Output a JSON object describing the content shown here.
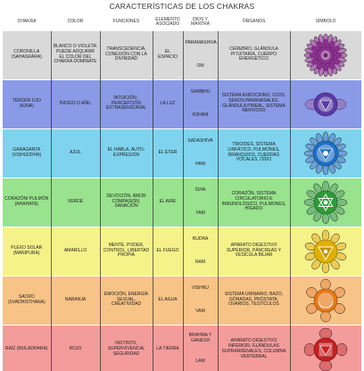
{
  "title": "CARACTERÍSTICAS DE LOS CHAKRAS",
  "headers": [
    "CHAKRA",
    "COLOR",
    "FUNCIONES",
    "ELEMENTO ASOCIADO",
    "DIOS Y MANTRA",
    "ÓRGANOS",
    "SÍMBOLO"
  ],
  "rows": [
    {
      "chakra": "CORONILLA (SAHASRARA)",
      "color": "BLANCO O VIOLETA: PUEDE ADQUIRIR EL COLOR DEL CHAKRA DOMINATE",
      "funciones": "TRANSCEDENCIA, CONEXIÓN CON LA DIVINIDAD",
      "elemento": "EL ESPACIO",
      "dios": "PARAMASHIVA",
      "mantra": "OM",
      "organos": "CEREBRO, GLÁNDULA PITUITARIA, CUERPO ENERGÉTICO",
      "symbol": "crown-chakra-icon",
      "bg": "#d9d9d9",
      "symbol_color": "#8a2f8f"
    },
    {
      "chakra": "TERCER OJO (AJNA)",
      "color": "ÍNDIGO O AÑIL",
      "funciones": "INTUICIÓN , PERCEPCIÓN EXTRASENSORIAL",
      "elemento": "LA LUZ",
      "dios": "SAMBHU",
      "mantra": "KSHAM",
      "organos": "SISTEMA ENDOCRINO, OJOS, SENOS PARANASALES, GLÁNDULA PINEAL, SISTEMA NERVIOSO",
      "symbol": "third-eye-chakra-icon",
      "bg": "#8a9ae6",
      "symbol_color": "#5b3aa8"
    },
    {
      "chakra": "GARAGANTA (VISHUDDHA)",
      "color": "AZUL",
      "funciones": "EL HABLA, AUTO-EXPRESIÓN",
      "elemento": "EL ÉTER",
      "dios": "SADASHIVA",
      "mantra": "HAM",
      "organos": "TIROIDES, SISTEMA LINFÁTICO, PULMONES, BRANQUIOS, CUERDAS VOCALES, OÍDO",
      "symbol": "throat-chakra-icon",
      "bg": "#7fd3ee",
      "symbol_color": "#1e6fc4"
    },
    {
      "chakra": "CORAZÓN/ PULMÓN (AHAHATA)",
      "color": "VERDE",
      "funciones": "DEVOCIÓN, AMOR COMPASIÓN, SANACIÓN",
      "elemento": "EL AIRE",
      "dios": "ISHA",
      "mantra": "YAM",
      "organos": "CORAZÓN, SISTEMA CIRCULATORIO E INMUNOLÓGICO, PULMONES, HÍGADO",
      "symbol": "heart-chakra-icon",
      "bg": "#99e28e",
      "symbol_color": "#2f9a3a"
    },
    {
      "chakra": "PLEXO SOLAR (MANIPURA)",
      "color": "AMARILLO",
      "funciones": "MENTE, PODER, CONTROL, LIBERTAD PROPIA",
      "elemento": "EL FUEGO",
      "dios": "RUDRA",
      "mantra": "RAM",
      "organos": "APARATO DIGESTIVO SUPERIOR, PÁNCREAS Y VESÍCULA BILIAR",
      "symbol": "solar-plexus-chakra-icon",
      "bg": "#f6f28a",
      "symbol_color": "#e0b000"
    },
    {
      "chakra": "SACRO (SVADHISTHANA)",
      "color": "NARANJA",
      "funciones": "EMOCIÓN, ENERGÍA SEXUAL, CREATIVIDAD",
      "elemento": "EL AGUA",
      "dios": "VISHNU",
      "mantra": "VAM",
      "organos": "SISTEMA URINARIO, BAZO, GÓNADAS, PRÓSTATA, OVARIOS, TESTÍCULOS",
      "symbol": "sacral-chakra-icon",
      "bg": "#f7c386",
      "symbol_color": "#e67817"
    },
    {
      "chakra": "RAÍZ (MULADHARA)",
      "color": "ROJO",
      "funciones": "INSTINTO, SUPERVIVENCIA, SEGURIDAD",
      "elemento": "LA TIERRA",
      "dios": "BRAHMA Y GANESH",
      "mantra": "LAM",
      "organos": "APARATO DIGESTIVO INFERIOR, GLÁNDULAS SUPRARRENALES, COLUMNA VERTEBRAL",
      "symbol": "root-chakra-icon",
      "bg": "#f49c9c",
      "symbol_color": "#c71f22"
    }
  ]
}
